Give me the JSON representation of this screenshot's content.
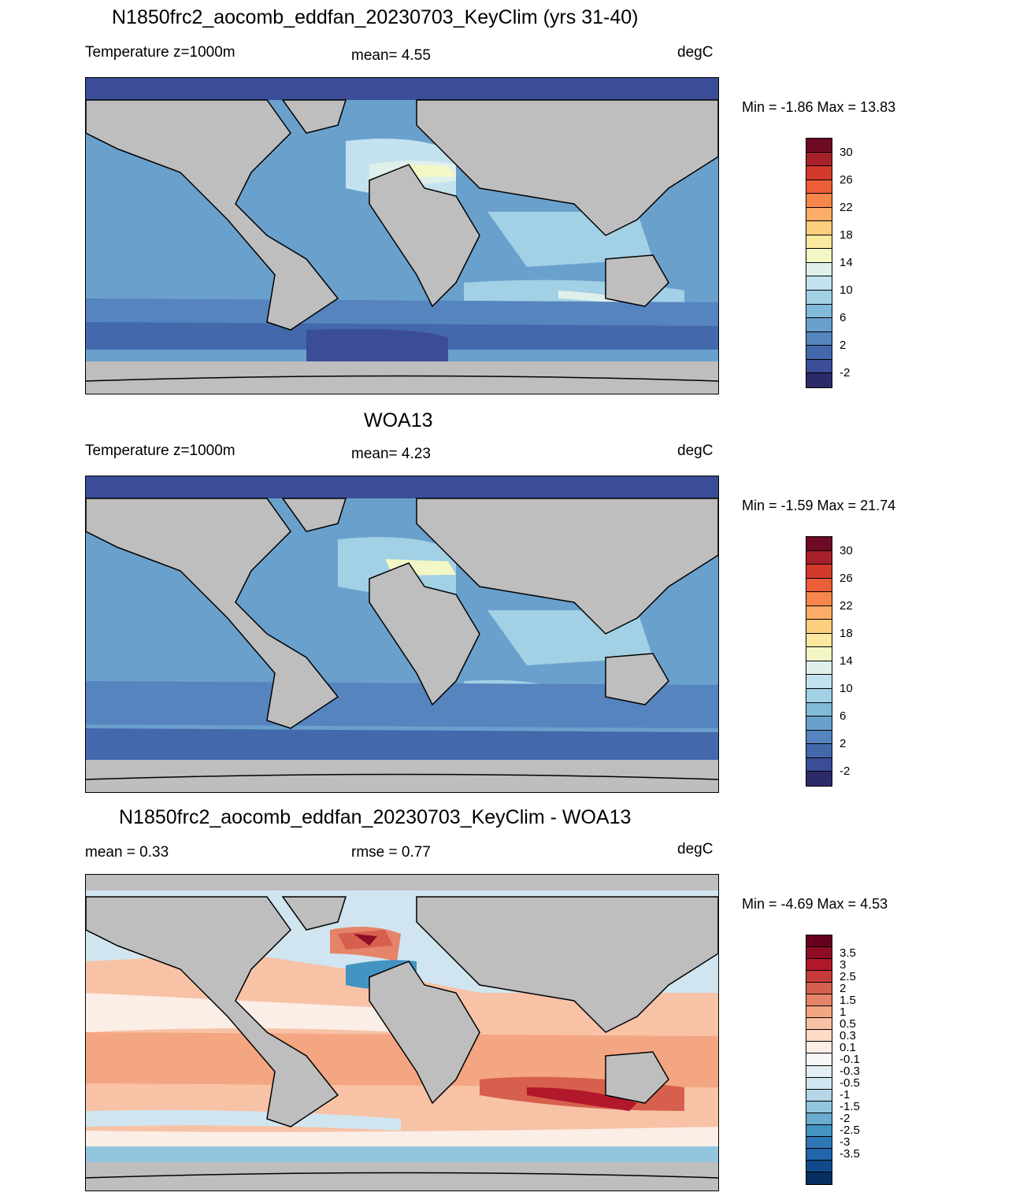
{
  "panels": [
    {
      "title": "N1850frc2_aocomb_eddfan_20230703_KeyClim (yrs 31-40)",
      "left_label": "Temperature z=1000m",
      "center_label": "mean=   4.55",
      "units": "degC",
      "minmax": "Min =  -1.86 Max =  13.83",
      "colorbar_ticks": [
        "30",
        "26",
        "22",
        "18",
        "14",
        "10",
        "6",
        "2",
        "-2"
      ]
    },
    {
      "title": "WOA13",
      "left_label": "Temperature z=1000m",
      "center_label": "mean=   4.23",
      "units": "degC",
      "minmax": "Min =  -1.59 Max =  21.74",
      "colorbar_ticks": [
        "30",
        "26",
        "22",
        "18",
        "14",
        "10",
        "6",
        "2",
        "-2"
      ]
    },
    {
      "title": "N1850frc2_aocomb_eddfan_20230703_KeyClim - WOA13",
      "left_label": "mean =   0.33",
      "center_label": "rmse =   0.77",
      "units": "degC",
      "minmax": "Min =  -4.69 Max =   4.53",
      "colorbar_ticks": [
        "3.5",
        "3",
        "2.5",
        "2",
        "1.5",
        "1",
        "0.5",
        "0.3",
        "0.1",
        "-0.1",
        "-0.3",
        "-0.5",
        "-1",
        "-1.5",
        "-2",
        "-2.5",
        "-3",
        "-3.5"
      ]
    }
  ],
  "colors": {
    "land": "#bebebe",
    "temp_palette": [
      "#6e0a24",
      "#a8202a",
      "#d33a2c",
      "#ec5e38",
      "#f6864c",
      "#fcac64",
      "#fdce7e",
      "#fbe9a0",
      "#f3f7c6",
      "#dff0ec",
      "#c3e2ee",
      "#a2d0e5",
      "#82bad9",
      "#6aa0cc",
      "#5584bf",
      "#4468ac",
      "#3b4d96",
      "#2d2a6a"
    ],
    "diff_palette": [
      "#67001f",
      "#8e0d25",
      "#b2182b",
      "#c73c3b",
      "#d6604d",
      "#e58468",
      "#f4a582",
      "#f8c2a6",
      "#fddbc7",
      "#fbeee6",
      "#f7f7f7",
      "#e4eef4",
      "#d1e5f0",
      "#b4d6e8",
      "#92c5de",
      "#6aabd0",
      "#4393c3",
      "#2e78b5",
      "#2166ac",
      "#114a8b",
      "#053061"
    ]
  }
}
